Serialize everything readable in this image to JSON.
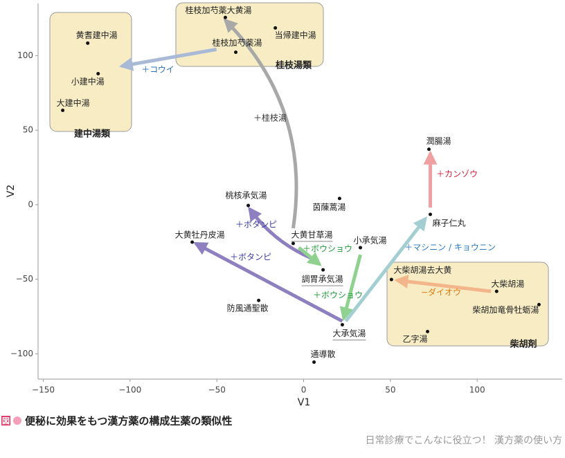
{
  "chart_data": {
    "type": "scatter",
    "x_label": "V1",
    "y_label": "V2",
    "xlim": [
      -153,
      149
    ],
    "ylim": [
      -117,
      135
    ],
    "xticks": [
      {
        "value": -150,
        "label": "−150"
      },
      {
        "value": -100,
        "label": "−100"
      },
      {
        "value": -50,
        "label": "−50"
      },
      0,
      50,
      100
    ],
    "yticks": [
      {
        "value": -100,
        "label": "−100"
      },
      {
        "value": -50,
        "label": "−50"
      },
      0,
      50,
      100
    ],
    "points": [
      {
        "name": "黄耆建中湯",
        "x": -124.4,
        "y": 108.4
      },
      {
        "name": "小建中湯",
        "x": -118.4,
        "y": 87.9
      },
      {
        "name": "大建中湯",
        "x": -138.8,
        "y": 63.3
      },
      {
        "name": "桂枝加芍薬大黄湯",
        "x": -45.1,
        "y": 125.6
      },
      {
        "name": "当帰建中湯",
        "x": -16.3,
        "y": 118.6
      },
      {
        "name": "桂枝加芍薬湯",
        "x": -39.1,
        "y": 102.3
      },
      {
        "name": "潤腸湯",
        "x": 72.2,
        "y": 37.2
      },
      {
        "name": "麻子仁丸",
        "x": 73.0,
        "y": -6.5
      },
      {
        "name": "桃核承気湯",
        "x": -31.9,
        "y": -0.5
      },
      {
        "name": "茵蔯蒿湯",
        "x": 20.7,
        "y": 4.2
      },
      {
        "name": "大黄甘草湯",
        "x": -6.0,
        "y": -26.0
      },
      {
        "name": "小承気湯",
        "x": 32.7,
        "y": -28.8
      },
      {
        "name": "大黄牡丹皮湯",
        "x": -64.2,
        "y": -25.1
      },
      {
        "name": "調胃承気湯",
        "x": 11.2,
        "y": -43.7
      },
      {
        "name": "大柴胡湯去大黄",
        "x": 50.6,
        "y": -50.2
      },
      {
        "name": "大柴胡湯",
        "x": 111.2,
        "y": -58.1
      },
      {
        "name": "柴胡加竜骨牡蛎湯",
        "x": 135.6,
        "y": -67.0
      },
      {
        "name": "防風通聖散",
        "x": -25.9,
        "y": -64.2
      },
      {
        "name": "大承気湯",
        "x": 22.3,
        "y": -80.5
      },
      {
        "name": "乙字湯",
        "x": 71.4,
        "y": -85.1
      },
      {
        "name": "通導散",
        "x": 6.0,
        "y": -105.6
      }
    ],
    "arrows": [
      {
        "label": "＋コウイ",
        "color": "#a9b9d6",
        "label_color": "#2a6db5",
        "from": [
          -50.2,
          104.2
        ],
        "to": [
          -104.8,
          93.0
        ]
      },
      {
        "label": "＋桂枝湯",
        "color": "#a8a8a8",
        "label_color": "#333333",
        "from": [
          -6.0,
          -15.8
        ],
        "to": [
          -45.1,
          123.7
        ]
      },
      {
        "label": "＋カンゾウ",
        "color": "#f0a0a0",
        "label_color": "#d0203a",
        "from": [
          73.0,
          -1.9
        ],
        "to": [
          73.0,
          34.4
        ]
      },
      {
        "label": "＋ボタンピ",
        "color": "#8d7fc0",
        "label_color": "#3a3aa0",
        "from": [
          8.4,
          -37.7
        ],
        "to": [
          -31.1,
          -2.8
        ]
      },
      {
        "label": "＋ボタンピ",
        "color": "#8d7fc0",
        "label_color": "#3a3aa0",
        "from": [
          22.3,
          -78.1
        ],
        "to": [
          -62.2,
          -26.0
        ]
      },
      {
        "label": "＋ボウショウ",
        "color": "#8fd18f",
        "label_color": "#1e9a3a",
        "from": [
          -2.8,
          -28.8
        ],
        "to": [
          9.2,
          -40.0
        ]
      },
      {
        "label": "＋ボウショウ",
        "color": "#8fd18f",
        "label_color": "#1e9a3a",
        "from": [
          32.7,
          -33.5
        ],
        "to": [
          23.1,
          -76.3
        ]
      },
      {
        "label": "＋マシニン / キョウニン",
        "color": "#a3cfd3",
        "label_color": "#2a7ac0",
        "from": [
          24.3,
          -78.1
        ],
        "to": [
          70.2,
          -9.3
        ]
      },
      {
        "label": "−ダイオウ",
        "color": "#f3b58a",
        "label_color": "#e07a10",
        "from": [
          108.0,
          -58.1
        ],
        "to": [
          53.8,
          -50.7
        ]
      }
    ],
    "groups": [
      "建中湯類",
      "桂枝湯類",
      "柴胡剤"
    ],
    "caption_mark": "図",
    "caption": "便秘に効果をもつ漢方薬の構成生薬の類似性",
    "footer": "日常診療でこんなに役立つ！ 漢方薬の使い方"
  }
}
